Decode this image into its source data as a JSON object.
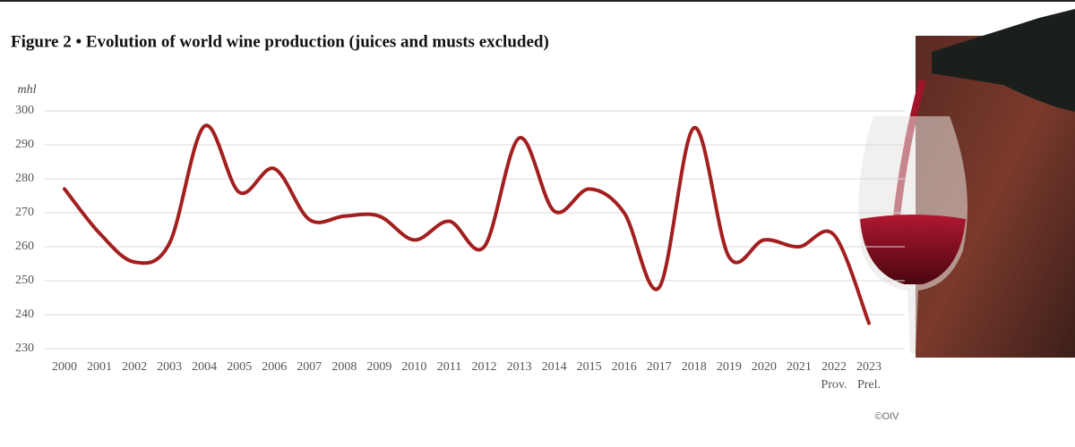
{
  "chart_data": {
    "type": "line",
    "title": "Figure 2 • Evolution of world wine production (juices and musts excluded)",
    "y_label": "mhl",
    "source": "©OIV",
    "categories": [
      "2000",
      "2001",
      "2002",
      "2003",
      "2004",
      "2005",
      "2006",
      "2007",
      "2008",
      "2009",
      "2010",
      "2011",
      "2012",
      "2013",
      "2014",
      "2015",
      "2016",
      "2017",
      "2018",
      "2019",
      "2020",
      "2021",
      "2022",
      "2023"
    ],
    "category_notes": [
      null,
      null,
      null,
      null,
      null,
      null,
      null,
      null,
      null,
      null,
      null,
      null,
      null,
      null,
      null,
      null,
      null,
      null,
      null,
      null,
      null,
      null,
      "Prov.",
      "Prel."
    ],
    "values": [
      277,
      264,
      255.5,
      261,
      295.5,
      276,
      283,
      268,
      269,
      269,
      262,
      267.5,
      260,
      292,
      270.5,
      277,
      270,
      248,
      295,
      257,
      262,
      260,
      263.5,
      237.5
    ],
    "color": "#a31f1f",
    "ylim": [
      230,
      300
    ],
    "yticks": [
      230,
      240,
      250,
      260,
      270,
      280,
      290,
      300
    ],
    "grid": true
  }
}
